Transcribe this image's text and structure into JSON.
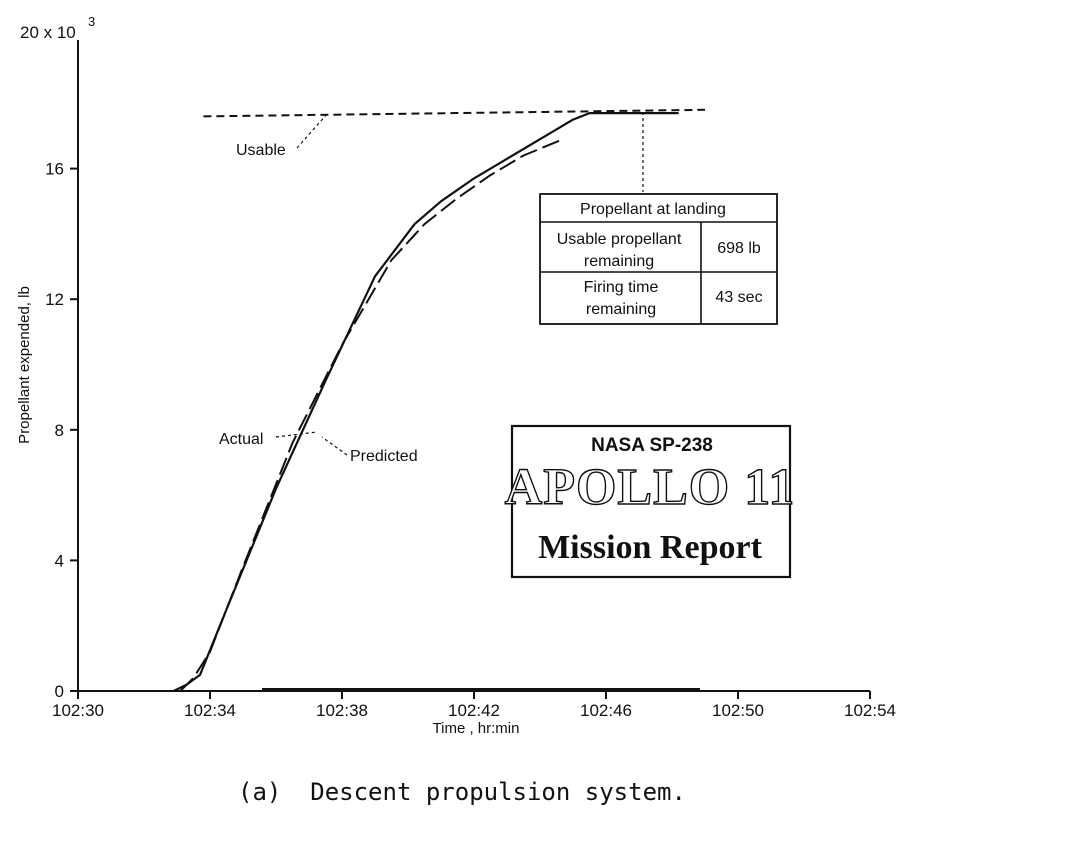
{
  "chart_data": {
    "type": "line",
    "title": "",
    "xlabel": "Time , hr:min",
    "ylabel": "Propellant expended, lb",
    "y_multiplier_label": "20 x 10",
    "y_multiplier_exp": "3",
    "xlim": [
      0,
      24
    ],
    "ylim": [
      0,
      20
    ],
    "x_ticks": [
      {
        "value": 0,
        "label": "102:30"
      },
      {
        "value": 4,
        "label": "102:34"
      },
      {
        "value": 8,
        "label": "102:38"
      },
      {
        "value": 12,
        "label": "102:42"
      },
      {
        "value": 16,
        "label": "102:46"
      },
      {
        "value": 20,
        "label": "102:50"
      },
      {
        "value": 24,
        "label": "102:54"
      }
    ],
    "y_ticks": [
      {
        "value": 0,
        "label": "0"
      },
      {
        "value": 4,
        "label": "4"
      },
      {
        "value": 8,
        "label": "8"
      },
      {
        "value": 12,
        "label": "12"
      },
      {
        "value": 16,
        "label": "16"
      }
    ],
    "grid": false,
    "series": [
      {
        "name": "Actual",
        "style": "solid",
        "x": [
          2.9,
          3.3,
          3.7,
          4.5,
          6,
          7.5,
          9,
          10.2,
          11,
          12,
          13,
          14,
          15,
          15.5,
          16,
          18.2
        ],
        "y": [
          0,
          0.2,
          0.5,
          2.5,
          6.2,
          9.5,
          12.7,
          14.3,
          15.0,
          15.7,
          16.3,
          16.9,
          17.5,
          17.7,
          17.7,
          17.7
        ]
      },
      {
        "name": "Predicted",
        "style": "dashed",
        "x": [
          3.1,
          3.5,
          4,
          5,
          6.5,
          8,
          9.5,
          10.5,
          11.5,
          12.5,
          13.5,
          14.7
        ],
        "y": [
          0,
          0.4,
          1.2,
          3.8,
          7.6,
          10.6,
          13.2,
          14.3,
          15.1,
          15.8,
          16.4,
          16.9
        ]
      },
      {
        "name": "Usable",
        "style": "dashed",
        "x": [
          3.8,
          19.0
        ],
        "y": [
          17.6,
          17.8
        ]
      }
    ],
    "annotations": {
      "usable": "Usable",
      "actual": "Actual",
      "predicted": "Predicted"
    },
    "table": {
      "title": "Propellant at landing",
      "rows": [
        {
          "label_line1": "Usable propellant",
          "label_line2": "remaining",
          "value": "698 lb"
        },
        {
          "label_line1": "Firing time",
          "label_line2": "remaining",
          "value": "43 sec"
        }
      ]
    },
    "caption": "(a)  Descent propulsion system."
  },
  "stamp": {
    "line1": "NASA SP-238",
    "line2": "APOLLO 11",
    "line3": "Mission Report"
  },
  "colors": {
    "ink": "#111111",
    "background": "#ffffff"
  }
}
